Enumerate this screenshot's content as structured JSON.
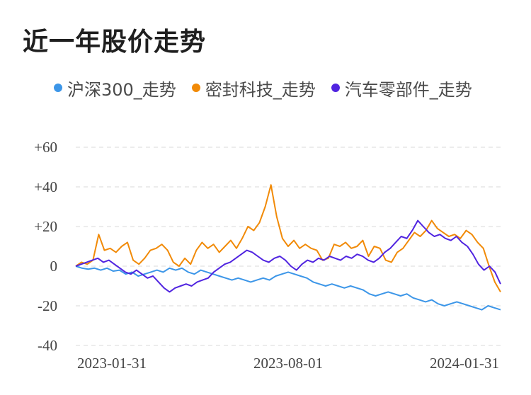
{
  "chart_data": {
    "type": "line",
    "title": "近一年股价走势",
    "xlabel": "",
    "ylabel": "",
    "x_ticks": [
      "2023-01-31",
      "2023-08-01",
      "2024-01-31"
    ],
    "y_ticks": [
      "+60",
      "+40",
      "+20",
      "0",
      "-20",
      "-40"
    ],
    "ylim": [
      -40,
      60
    ],
    "grid": true,
    "legend": "top",
    "series": [
      {
        "name": "沪深300_走势",
        "color": "#3c96e8",
        "values": [
          0,
          -1,
          -1.5,
          -1,
          -2,
          -1,
          -2.5,
          -2,
          -4,
          -3,
          -5,
          -4,
          -3,
          -2,
          -3,
          -1,
          -2,
          -1,
          -3,
          -4,
          -2,
          -3,
          -4,
          -5,
          -6,
          -7,
          -6,
          -7,
          -8,
          -7,
          -6,
          -7,
          -5,
          -4,
          -3,
          -4,
          -5,
          -6,
          -8,
          -9,
          -10,
          -9,
          -10,
          -11,
          -10,
          -11,
          -12,
          -14,
          -15,
          -14,
          -13,
          -14,
          -15,
          -14,
          -16,
          -17,
          -18,
          -17,
          -19,
          -20,
          -19,
          -18,
          -19,
          -20,
          -21,
          -22,
          -20,
          -21,
          -22
        ]
      },
      {
        "name": "密封科技_走势",
        "color": "#f18a07",
        "values": [
          0,
          2,
          1,
          3,
          16,
          8,
          9,
          7,
          10,
          12,
          3,
          1,
          4,
          8,
          9,
          11,
          8,
          2,
          0,
          4,
          1,
          8,
          12,
          9,
          11,
          7,
          10,
          13,
          9,
          14,
          20,
          18,
          22,
          30,
          41,
          25,
          14,
          10,
          13,
          9,
          11,
          9,
          8,
          3,
          4,
          11,
          10,
          12,
          9,
          10,
          13,
          5,
          10,
          9,
          3,
          2,
          7,
          9,
          13,
          17,
          15,
          18,
          23,
          19,
          17,
          15,
          16,
          14,
          18,
          16,
          12,
          9,
          0,
          -8,
          -13
        ]
      },
      {
        "name": "汽车零部件_走势",
        "color": "#5024e0",
        "values": [
          0,
          1,
          2,
          3,
          4,
          2,
          3,
          1,
          -1,
          -3,
          -4,
          -2,
          -4,
          -6,
          -5,
          -8,
          -11,
          -13,
          -11,
          -10,
          -9,
          -10,
          -8,
          -7,
          -6,
          -3,
          -1,
          1,
          2,
          4,
          6,
          8,
          7,
          5,
          3,
          2,
          4,
          5,
          3,
          0,
          -2,
          1,
          3,
          2,
          4,
          3,
          5,
          4,
          3,
          5,
          4,
          6,
          5,
          3,
          2,
          4,
          7,
          9,
          12,
          15,
          14,
          18,
          23,
          20,
          17,
          15,
          16,
          14,
          13,
          15,
          12,
          10,
          6,
          1,
          -2,
          0,
          -3,
          -9
        ]
      }
    ]
  }
}
